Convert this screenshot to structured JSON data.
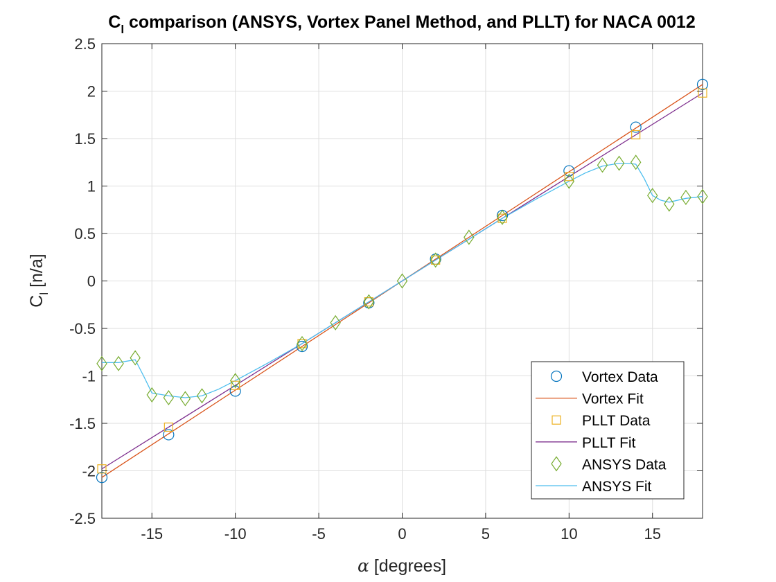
{
  "chart_data": {
    "type": "line",
    "title_main": "C",
    "title_sub": "l",
    "title_rest": " comparison (ANSYS, Vortex Panel Method, and PLLT) for NACA 0012",
    "xlabel_symbol": "α",
    "xlabel_rest": " [degrees]",
    "ylabel_main": "C",
    "ylabel_sub": "l",
    "ylabel_rest": " [n/a]",
    "xlim": [
      -18,
      18
    ],
    "ylim": [
      -2.5,
      2.5
    ],
    "xticks": [
      -15,
      -10,
      -5,
      0,
      5,
      10,
      15
    ],
    "yticks": [
      -2.5,
      -2,
      -1.5,
      -1,
      -0.5,
      0,
      0.5,
      1,
      1.5,
      2,
      2.5
    ],
    "grid": true,
    "legend_position": "bottom-right",
    "series": [
      {
        "name": "Vortex Data",
        "style": "marker",
        "marker": "circle",
        "color": "#0072BD",
        "x": [
          -18,
          -14,
          -10,
          -6,
          -2,
          2,
          6,
          10,
          14,
          18
        ],
        "y": [
          -2.07,
          -1.62,
          -1.16,
          -0.69,
          -0.23,
          0.23,
          0.69,
          1.16,
          1.62,
          2.07
        ]
      },
      {
        "name": "Vortex Fit",
        "style": "line",
        "color": "#D95319",
        "x": [
          -18,
          18
        ],
        "y": [
          -2.07,
          2.07
        ]
      },
      {
        "name": "PLLT Data",
        "style": "marker",
        "marker": "square",
        "color": "#EDB120",
        "x": [
          -18,
          -14,
          -10,
          -6,
          -2,
          2,
          6,
          10,
          14,
          18
        ],
        "y": [
          -1.98,
          -1.54,
          -1.1,
          -0.66,
          -0.22,
          0.22,
          0.66,
          1.1,
          1.54,
          1.98
        ]
      },
      {
        "name": "PLLT Fit",
        "style": "line",
        "color": "#7E2F8E",
        "x": [
          -18,
          18
        ],
        "y": [
          -1.98,
          1.98
        ]
      },
      {
        "name": "ANSYS Data",
        "style": "marker",
        "marker": "diamond",
        "color": "#77AC30",
        "x": [
          -18,
          -17,
          -16,
          -15,
          -14,
          -13,
          -12,
          -10,
          -6,
          -4,
          -2,
          0,
          2,
          4,
          6,
          10,
          12,
          13,
          14,
          15,
          16,
          17,
          18
        ],
        "y": [
          -0.87,
          -0.87,
          -0.81,
          -1.2,
          -1.23,
          -1.24,
          -1.21,
          -1.05,
          -0.66,
          -0.44,
          -0.22,
          0.0,
          0.22,
          0.46,
          0.67,
          1.05,
          1.22,
          1.24,
          1.25,
          0.9,
          0.81,
          0.88,
          0.89
        ]
      },
      {
        "name": "ANSYS Fit",
        "style": "line",
        "color": "#4DBEEE",
        "x": [
          -18,
          -17,
          -16,
          -15.5,
          -15,
          -14,
          -13,
          -12,
          -11,
          -10,
          -8,
          -6,
          -4,
          -2,
          0,
          2,
          4,
          6,
          8,
          10,
          11,
          12,
          13,
          13.5,
          14,
          14.5,
          15,
          15.5,
          16,
          17,
          18
        ],
        "y": [
          -0.86,
          -0.86,
          -0.83,
          -1.0,
          -1.18,
          -1.21,
          -1.23,
          -1.21,
          -1.14,
          -1.05,
          -0.86,
          -0.66,
          -0.44,
          -0.22,
          0.0,
          0.22,
          0.44,
          0.66,
          0.86,
          1.05,
          1.14,
          1.21,
          1.24,
          1.24,
          1.23,
          1.08,
          0.9,
          0.85,
          0.83,
          0.87,
          0.89
        ]
      }
    ]
  }
}
